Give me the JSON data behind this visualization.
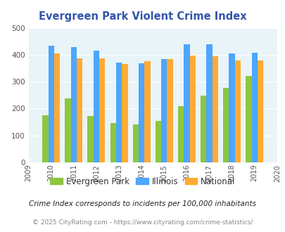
{
  "title": "Evergreen Park Violent Crime Index",
  "years": [
    2010,
    2011,
    2012,
    2013,
    2014,
    2015,
    2016,
    2017,
    2018,
    2019
  ],
  "evergreen_park": [
    175,
    237,
    172,
    145,
    140,
    153,
    208,
    247,
    278,
    322
  ],
  "illinois": [
    433,
    428,
    415,
    372,
    368,
    383,
    438,
    438,
    405,
    408
  ],
  "national": [
    405,
    387,
    387,
    365,
    375,
    383,
    397,
    394,
    379,
    379
  ],
  "colors": {
    "evergreen_park": "#8dc63f",
    "illinois": "#4da6ff",
    "national": "#ffaa33"
  },
  "ylim": [
    0,
    500
  ],
  "yticks": [
    0,
    100,
    200,
    300,
    400,
    500
  ],
  "xlabel_years": [
    2009,
    2010,
    2011,
    2012,
    2013,
    2014,
    2015,
    2016,
    2017,
    2018,
    2019,
    2020
  ],
  "bg_color": "#e8f4f8",
  "title_color": "#3355aa",
  "legend_labels": [
    "Evergreen Park",
    "Illinois",
    "National"
  ],
  "footnote1": "Crime Index corresponds to incidents per 100,000 inhabitants",
  "footnote2": "© 2025 CityRating.com - https://www.cityrating.com/crime-statistics/",
  "bar_width": 0.26
}
